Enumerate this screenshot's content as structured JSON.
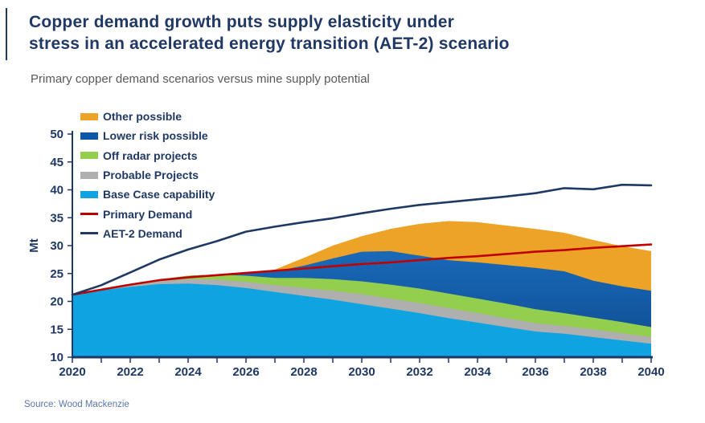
{
  "header": {
    "title_line1": "Copper demand growth puts supply elasticity under",
    "title_line2": "stress in an accelerated energy transition (AET-2) scenario",
    "subtitle": "Primary copper demand scenarios versus mine supply potential"
  },
  "colors": {
    "title_navy": "#1F3864",
    "subtitle_gray": "#595959",
    "axis_navy": "#1F3864",
    "base_case_blue": "#0FA4E1",
    "probable_gray": "#AFAFAF",
    "off_radar_green": "#94CE4F",
    "lower_risk_blue": "#0C57A8",
    "lower_risk_gradient_top": "#1A69B8",
    "lower_risk_gradient_bottom": "#0D4B90",
    "other_orange": "#ECA327",
    "primary_demand_red": "#C00000",
    "aet2_navy": "#1F3864",
    "source_blue": "#5B76AC"
  },
  "legend": [
    {
      "label": "Other possible",
      "swatch": "area",
      "color": "#ECA327"
    },
    {
      "label": "Lower risk possible",
      "swatch": "area",
      "color": "#0C57A8"
    },
    {
      "label": "Off radar projects",
      "swatch": "area",
      "color": "#94CE4F"
    },
    {
      "label": "Probable Projects",
      "swatch": "area",
      "color": "#AFAFAF"
    },
    {
      "label": "Base Case capability",
      "swatch": "area",
      "color": "#0FA4E1"
    },
    {
      "label": "Primary Demand",
      "swatch": "line",
      "color": "#C00000"
    },
    {
      "label": "AET-2 Demand",
      "swatch": "line",
      "color": "#1F3864"
    }
  ],
  "chart_data": {
    "type": "area",
    "title": "Primary copper demand scenarios versus mine supply potential",
    "xlabel": "",
    "ylabel": "Mt",
    "ylim": [
      10,
      50
    ],
    "y_ticks": [
      10,
      15,
      20,
      25,
      30,
      35,
      40,
      45,
      50
    ],
    "x_ticks": [
      2020,
      2022,
      2024,
      2026,
      2028,
      2030,
      2032,
      2034,
      2036,
      2038,
      2040
    ],
    "x": [
      2020,
      2021,
      2022,
      2023,
      2024,
      2025,
      2026,
      2027,
      2028,
      2029,
      2030,
      2031,
      2032,
      2033,
      2034,
      2035,
      2036,
      2037,
      2038,
      2039,
      2040
    ],
    "legend_position": "top-left",
    "grid": false,
    "series": [
      {
        "name": "Base Case capability",
        "type": "stacked-area",
        "color": "#0FA4E1",
        "values": [
          21.2,
          22.0,
          22.6,
          23.1,
          23.2,
          22.9,
          22.4,
          21.7,
          21.0,
          20.3,
          19.5,
          18.7,
          17.9,
          17.0,
          16.2,
          15.4,
          14.6,
          14.2,
          13.6,
          13.0,
          12.4
        ]
      },
      {
        "name": "Probable Projects",
        "type": "stacked-area",
        "color": "#AFAFAF",
        "values": [
          0,
          0,
          0.2,
          0.5,
          0.8,
          1.0,
          1.1,
          1.2,
          1.4,
          1.6,
          1.8,
          1.8,
          1.8,
          1.8,
          1.7,
          1.6,
          1.5,
          1.4,
          1.4,
          1.3,
          1.2
        ]
      },
      {
        "name": "Off radar projects",
        "type": "stacked-area",
        "color": "#94CE4F",
        "values": [
          0,
          0,
          0,
          0.3,
          0.6,
          0.9,
          1.1,
          1.3,
          1.8,
          2.1,
          2.3,
          2.5,
          2.6,
          2.6,
          2.6,
          2.6,
          2.5,
          2.3,
          2.1,
          2.0,
          1.8
        ]
      },
      {
        "name": "Lower risk possible",
        "type": "stacked-area",
        "color": "#0C57A8",
        "gradient": true,
        "values": [
          0,
          0,
          0,
          0,
          0,
          0,
          0.4,
          1.2,
          2.2,
          3.7,
          5.3,
          6.0,
          5.9,
          6.0,
          6.5,
          6.9,
          7.4,
          7.5,
          6.6,
          6.4,
          6.5
        ]
      },
      {
        "name": "Other possible",
        "type": "stacked-area",
        "color": "#ECA327",
        "values": [
          0,
          0,
          0,
          0,
          0,
          0,
          0.1,
          0.3,
          1.4,
          2.3,
          2.8,
          4.0,
          5.7,
          7.0,
          7.2,
          7.1,
          7.0,
          6.9,
          7.3,
          7.2,
          7.1
        ]
      },
      {
        "name": "Primary Demand",
        "type": "line",
        "color": "#C00000",
        "values": [
          21.2,
          22.1,
          23.0,
          23.8,
          24.3,
          24.7,
          25.1,
          25.5,
          25.9,
          26.3,
          26.7,
          27.0,
          27.4,
          27.8,
          28.1,
          28.5,
          28.9,
          29.2,
          29.6,
          29.9,
          30.2
        ]
      },
      {
        "name": "AET-2 Demand",
        "type": "line",
        "color": "#1F3864",
        "values": [
          21.2,
          22.9,
          25.2,
          27.5,
          29.3,
          30.8,
          32.5,
          33.4,
          34.2,
          34.9,
          35.8,
          36.6,
          37.3,
          37.8,
          38.3,
          38.8,
          39.4,
          40.3,
          40.1,
          40.9,
          40.8
        ]
      }
    ]
  },
  "source": "Source: Wood Mackenzie"
}
